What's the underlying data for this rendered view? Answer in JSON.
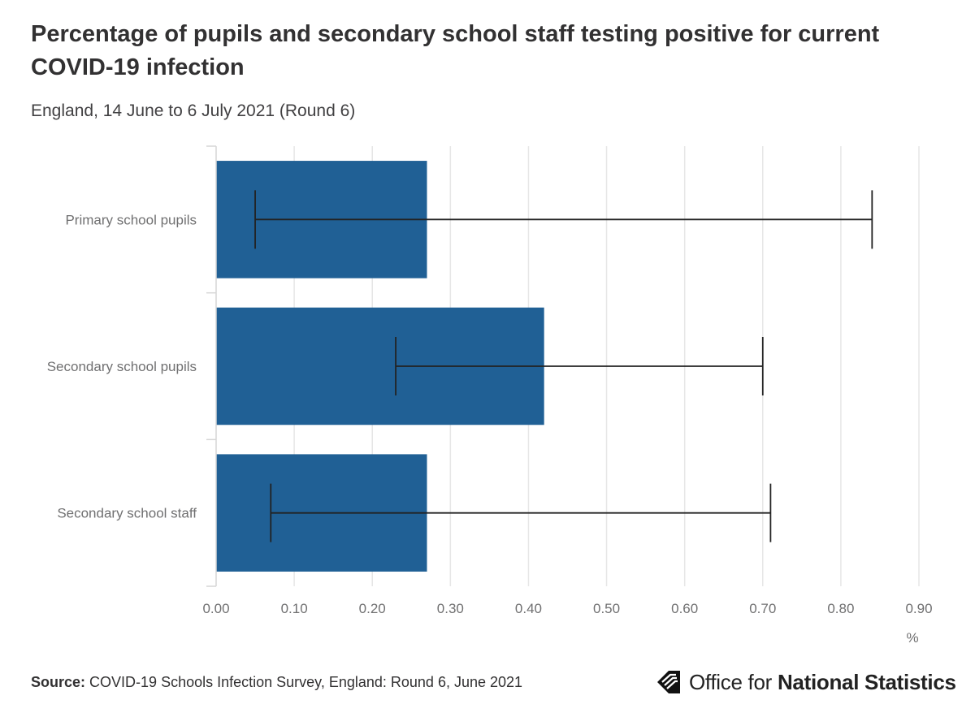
{
  "chart_data": {
    "type": "bar",
    "orientation": "horizontal",
    "title": "Percentage of pupils and secondary school staff testing positive for current COVID-19 infection",
    "subtitle": "England, 14 June to 6 July 2021 (Round 6)",
    "categories": [
      "Primary school pupils",
      "Secondary school pupils",
      "Secondary school staff"
    ],
    "values": [
      0.27,
      0.42,
      0.27
    ],
    "ci_lower": [
      0.05,
      0.23,
      0.07
    ],
    "ci_upper": [
      0.84,
      0.7,
      0.71
    ],
    "xlim": [
      0,
      0.9
    ],
    "xticks": [
      "0.00",
      "0.10",
      "0.20",
      "0.30",
      "0.40",
      "0.50",
      "0.60",
      "0.70",
      "0.80",
      "0.90"
    ],
    "xlabel": "%",
    "grid": true,
    "bar_color": "#206095",
    "errorbar_color": "#222222",
    "grid_color": "#e6e6e6"
  },
  "footer": {
    "source_label": "Source:",
    "source_text": "COVID-19 Schools Infection Survey, England: Round 6, June 2021",
    "logo_text_regular": "Office for",
    "logo_text_bold": "National Statistics"
  }
}
